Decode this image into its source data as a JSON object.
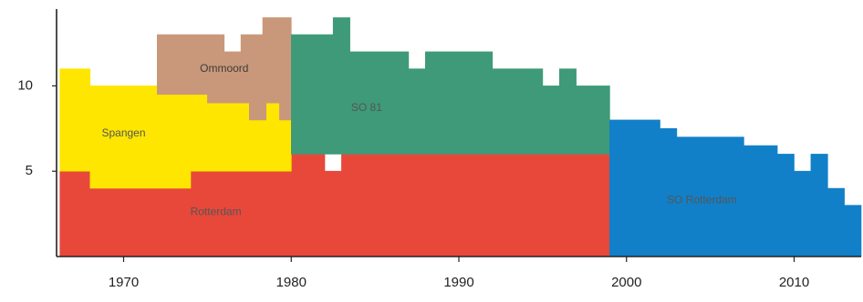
{
  "chart_data": {
    "type": "area",
    "title": "",
    "xlabel": "",
    "ylabel": "",
    "xlim": [
      1966,
      2014
    ],
    "ylim": [
      0,
      14.5
    ],
    "x_ticks": [
      {
        "value": 1970,
        "label": "1970"
      },
      {
        "value": 1980,
        "label": "1980"
      },
      {
        "value": 1990,
        "label": "1990"
      },
      {
        "value": 2000,
        "label": "2000"
      },
      {
        "value": 2010,
        "label": "2010"
      }
    ],
    "y_ticks": [
      {
        "value": 5,
        "label": "5"
      },
      {
        "value": 10,
        "label": "10"
      }
    ],
    "grid": false,
    "legend": "none",
    "series": [
      {
        "name": "Rotterdam",
        "color": "#e8483a",
        "label_x": 1975.5,
        "label_y": 2.6,
        "points": [
          [
            1966.2,
            0
          ],
          [
            1966.2,
            5
          ],
          [
            1968,
            5
          ],
          [
            1968,
            4
          ],
          [
            1974,
            4
          ],
          [
            1974,
            5
          ],
          [
            1980,
            5
          ],
          [
            1980,
            6
          ],
          [
            1982,
            6
          ],
          [
            1982,
            5
          ],
          [
            1983,
            5
          ],
          [
            1983,
            6
          ],
          [
            1999,
            6
          ],
          [
            1999,
            0
          ]
        ]
      },
      {
        "name": "Spangen",
        "color": "#ffe600",
        "label_x": 1970,
        "label_y": 7.2,
        "points": [
          [
            1966.2,
            5
          ],
          [
            1966.2,
            11
          ],
          [
            1968,
            11
          ],
          [
            1968,
            10
          ],
          [
            1972,
            10
          ],
          [
            1972,
            9.5
          ],
          [
            1975,
            9.5
          ],
          [
            1975,
            9
          ],
          [
            1977.5,
            9
          ],
          [
            1977.5,
            8
          ],
          [
            1978.5,
            8
          ],
          [
            1978.5,
            9
          ],
          [
            1979.3,
            9
          ],
          [
            1979.3,
            8
          ],
          [
            1980,
            8
          ],
          [
            1980,
            5
          ],
          [
            1974,
            5
          ],
          [
            1974,
            4
          ],
          [
            1968,
            4
          ],
          [
            1968,
            5
          ]
        ]
      },
      {
        "name": "Ommoord",
        "color": "#c9987a",
        "label_x": 1976,
        "label_y": 11,
        "points": [
          [
            1972,
            9.5
          ],
          [
            1972,
            13
          ],
          [
            1976,
            13
          ],
          [
            1976,
            12
          ],
          [
            1977,
            12
          ],
          [
            1977,
            13
          ],
          [
            1978.3,
            13
          ],
          [
            1978.3,
            14
          ],
          [
            1980,
            14
          ],
          [
            1980,
            8
          ],
          [
            1979.3,
            8
          ],
          [
            1979.3,
            9
          ],
          [
            1978.5,
            9
          ],
          [
            1978.5,
            8
          ],
          [
            1977.5,
            8
          ],
          [
            1977.5,
            9
          ],
          [
            1975,
            9
          ],
          [
            1975,
            9.5
          ]
        ]
      },
      {
        "name": "SO 81",
        "color": "#3e9a78",
        "label_x": 1984.5,
        "label_y": 8.7,
        "points": [
          [
            1980,
            6
          ],
          [
            1980,
            13
          ],
          [
            1982.5,
            13
          ],
          [
            1982.5,
            14
          ],
          [
            1983.5,
            14
          ],
          [
            1983.5,
            12
          ],
          [
            1987,
            12
          ],
          [
            1987,
            11
          ],
          [
            1988,
            11
          ],
          [
            1988,
            12
          ],
          [
            1992,
            12
          ],
          [
            1992,
            11
          ],
          [
            1995,
            11
          ],
          [
            1995,
            10
          ],
          [
            1996,
            10
          ],
          [
            1996,
            11
          ],
          [
            1997,
            11
          ],
          [
            1997,
            10
          ],
          [
            1999,
            10
          ],
          [
            1999,
            6
          ]
        ]
      },
      {
        "name": "SO Rotterdam",
        "color": "#1180c8",
        "label_x": 2004.5,
        "label_y": 3.3,
        "points": [
          [
            1999,
            0
          ],
          [
            1999,
            8
          ],
          [
            2002,
            8
          ],
          [
            2002,
            7.5
          ],
          [
            2003,
            7.5
          ],
          [
            2003,
            7
          ],
          [
            2007,
            7
          ],
          [
            2007,
            6.5
          ],
          [
            2009,
            6.5
          ],
          [
            2009,
            6
          ],
          [
            2010,
            6
          ],
          [
            2010,
            5
          ],
          [
            2011,
            5
          ],
          [
            2011,
            6
          ],
          [
            2012,
            6
          ],
          [
            2012,
            4
          ],
          [
            2013,
            4
          ],
          [
            2013,
            3
          ],
          [
            2014,
            3
          ],
          [
            2014,
            0
          ]
        ]
      }
    ]
  }
}
